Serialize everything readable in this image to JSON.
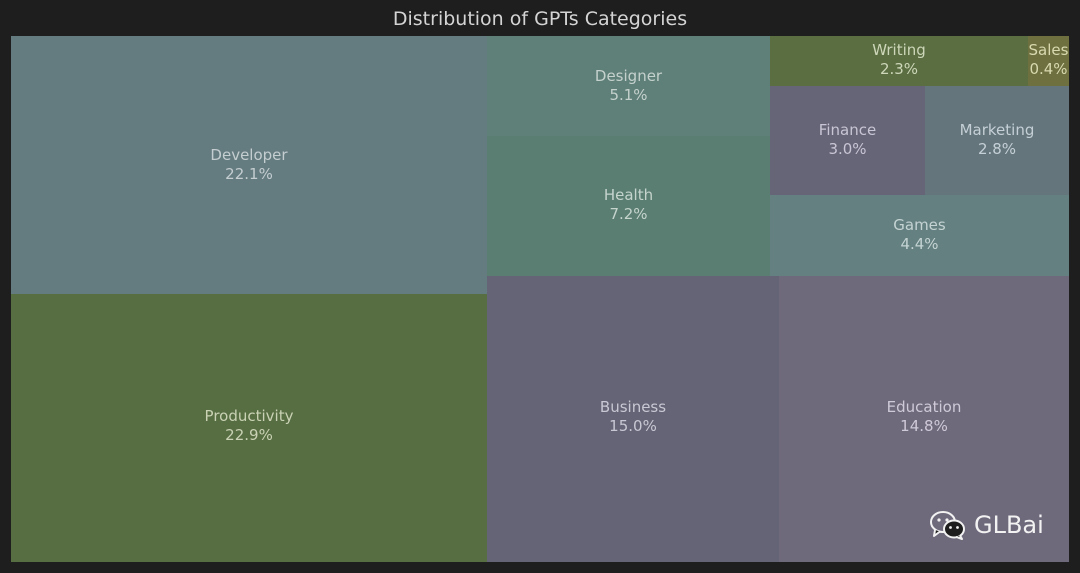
{
  "chart_data": {
    "type": "treemap",
    "title": "Distribution of GPTs Categories",
    "items": [
      {
        "name": "Developer",
        "value": "22.1%",
        "color": "#647c80",
        "text_color": "#c4cdd0"
      },
      {
        "name": "Productivity",
        "value": "22.9%",
        "color": "#576d42",
        "text_color": "#c9d2b4"
      },
      {
        "name": "Designer",
        "value": "5.1%",
        "color": "#5f7f79",
        "text_color": "#c5d1cc"
      },
      {
        "name": "Health",
        "value": "7.2%",
        "color": "#5a7e72",
        "text_color": "#c5d4cd"
      },
      {
        "name": "Business",
        "value": "15.0%",
        "color": "#646476",
        "text_color": "#c8c8d4"
      },
      {
        "name": "Education",
        "value": "14.8%",
        "color": "#6f697c",
        "text_color": "#cfcad8"
      },
      {
        "name": "Writing",
        "value": "2.3%",
        "color": "#5a6e42",
        "text_color": "#cdd6b8"
      },
      {
        "name": "Sales",
        "value": "0.4%",
        "color": "#6e703f",
        "text_color": "#d9d9b0"
      },
      {
        "name": "Finance",
        "value": "3.0%",
        "color": "#666477",
        "text_color": "#c8c6d4"
      },
      {
        "name": "Marketing",
        "value": "2.8%",
        "color": "#64757c",
        "text_color": "#c5d0d6"
      },
      {
        "name": "Games",
        "value": "4.4%",
        "color": "#648080",
        "text_color": "#c5d3d3"
      }
    ]
  },
  "watermark": {
    "icon": "wechat-icon",
    "text": "GLBai"
  }
}
